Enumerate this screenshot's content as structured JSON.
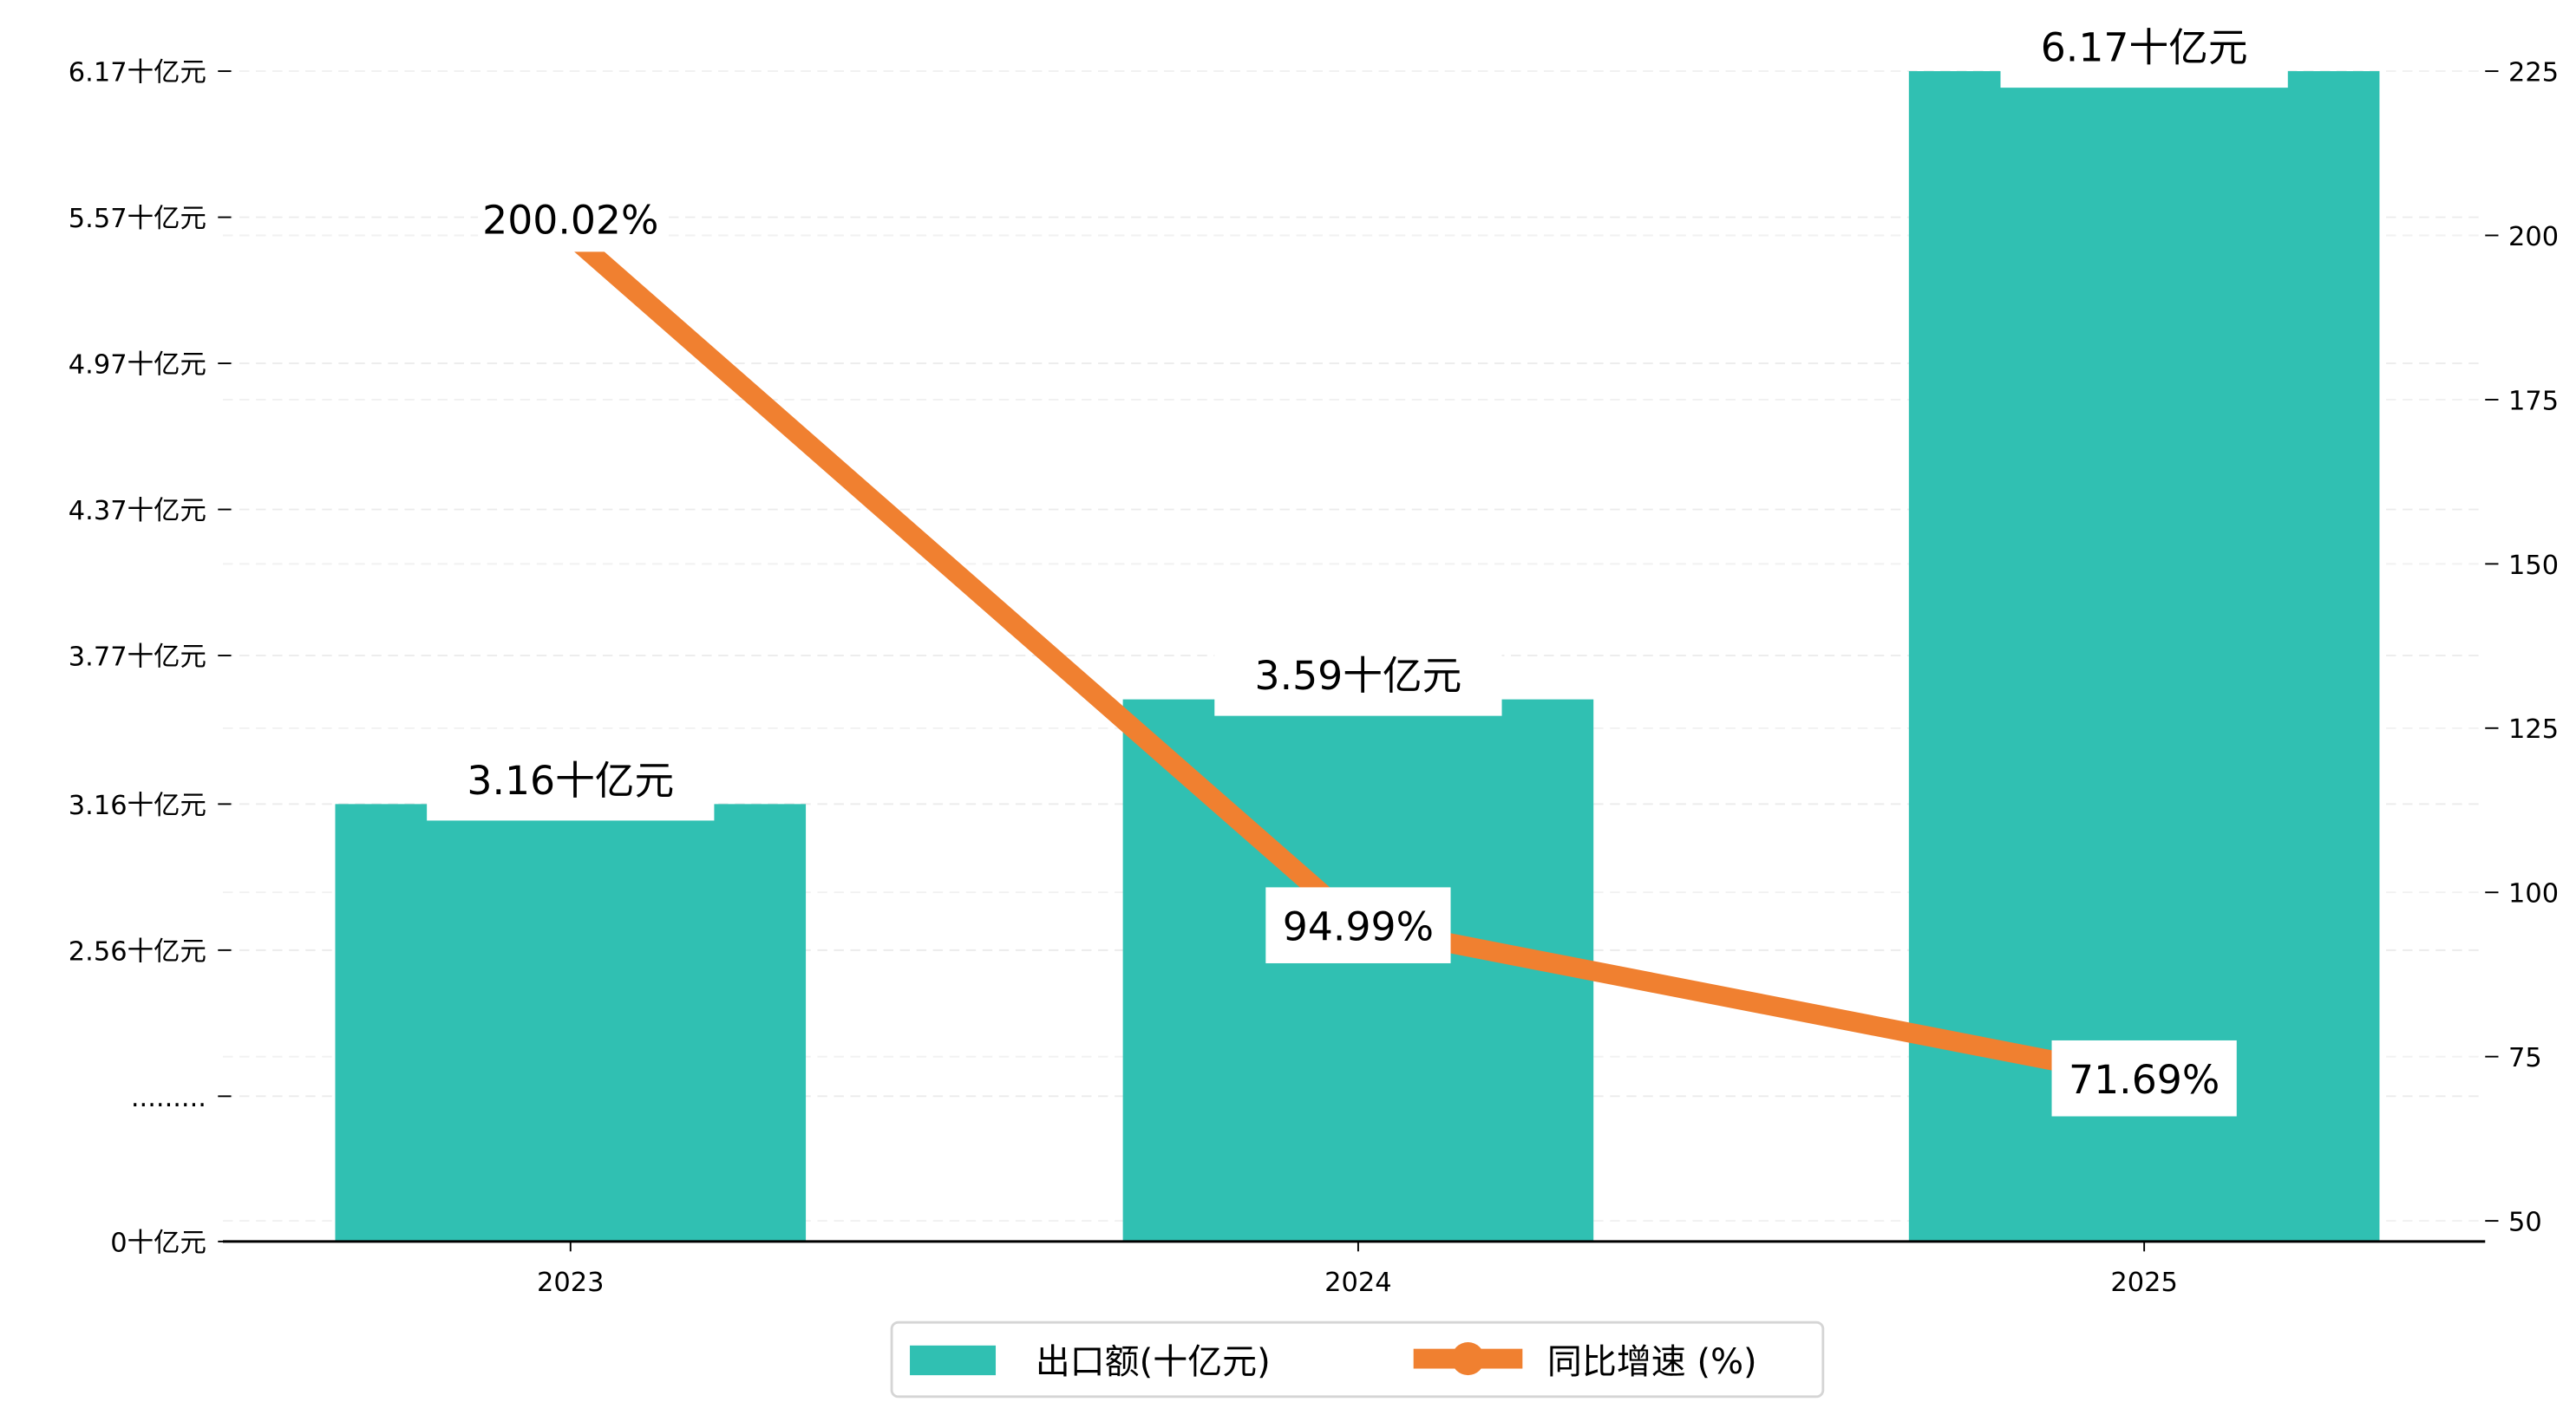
{
  "chart_data": {
    "type": "bar+line",
    "categories": [
      "2023",
      "2024",
      "2025"
    ],
    "series": [
      {
        "name": "出口额(十亿元)",
        "type": "bar",
        "axis": "left",
        "values": [
          3.16,
          3.59,
          6.17
        ],
        "labels": [
          "3.16十亿元",
          "3.59十亿元",
          "6.17十亿元"
        ],
        "color": "#1ABC9C"
      },
      {
        "name": "同比增速 (%)",
        "type": "line",
        "axis": "right",
        "values": [
          200.02,
          94.99,
          71.69
        ],
        "labels": [
          "200.02%",
          "94.99%",
          "71.69%"
        ],
        "color": "#F08030"
      }
    ],
    "left_axis": {
      "broken": true,
      "ticks": [
        {
          "value": 0,
          "label": "0十亿元"
        },
        {
          "value": null,
          "label": "........."
        },
        {
          "value": 2.56,
          "label": "2.56十亿元"
        },
        {
          "value": 3.16,
          "label": "3.16十亿元"
        },
        {
          "value": 3.77,
          "label": "3.77十亿元"
        },
        {
          "value": 4.37,
          "label": "4.37十亿元"
        },
        {
          "value": 4.97,
          "label": "4.97十亿元"
        },
        {
          "value": 5.57,
          "label": "5.57十亿元"
        },
        {
          "value": 6.17,
          "label": "6.17十亿元"
        }
      ]
    },
    "right_axis": {
      "ticks": [
        50,
        75,
        100,
        125,
        150,
        175,
        200,
        225
      ],
      "ylim": [
        47,
        225
      ]
    },
    "grid": "horizontal dashed",
    "legend": {
      "placement": "bottom-center",
      "entries": [
        "出口额(十亿元)",
        "同比增速 (%)"
      ]
    }
  }
}
